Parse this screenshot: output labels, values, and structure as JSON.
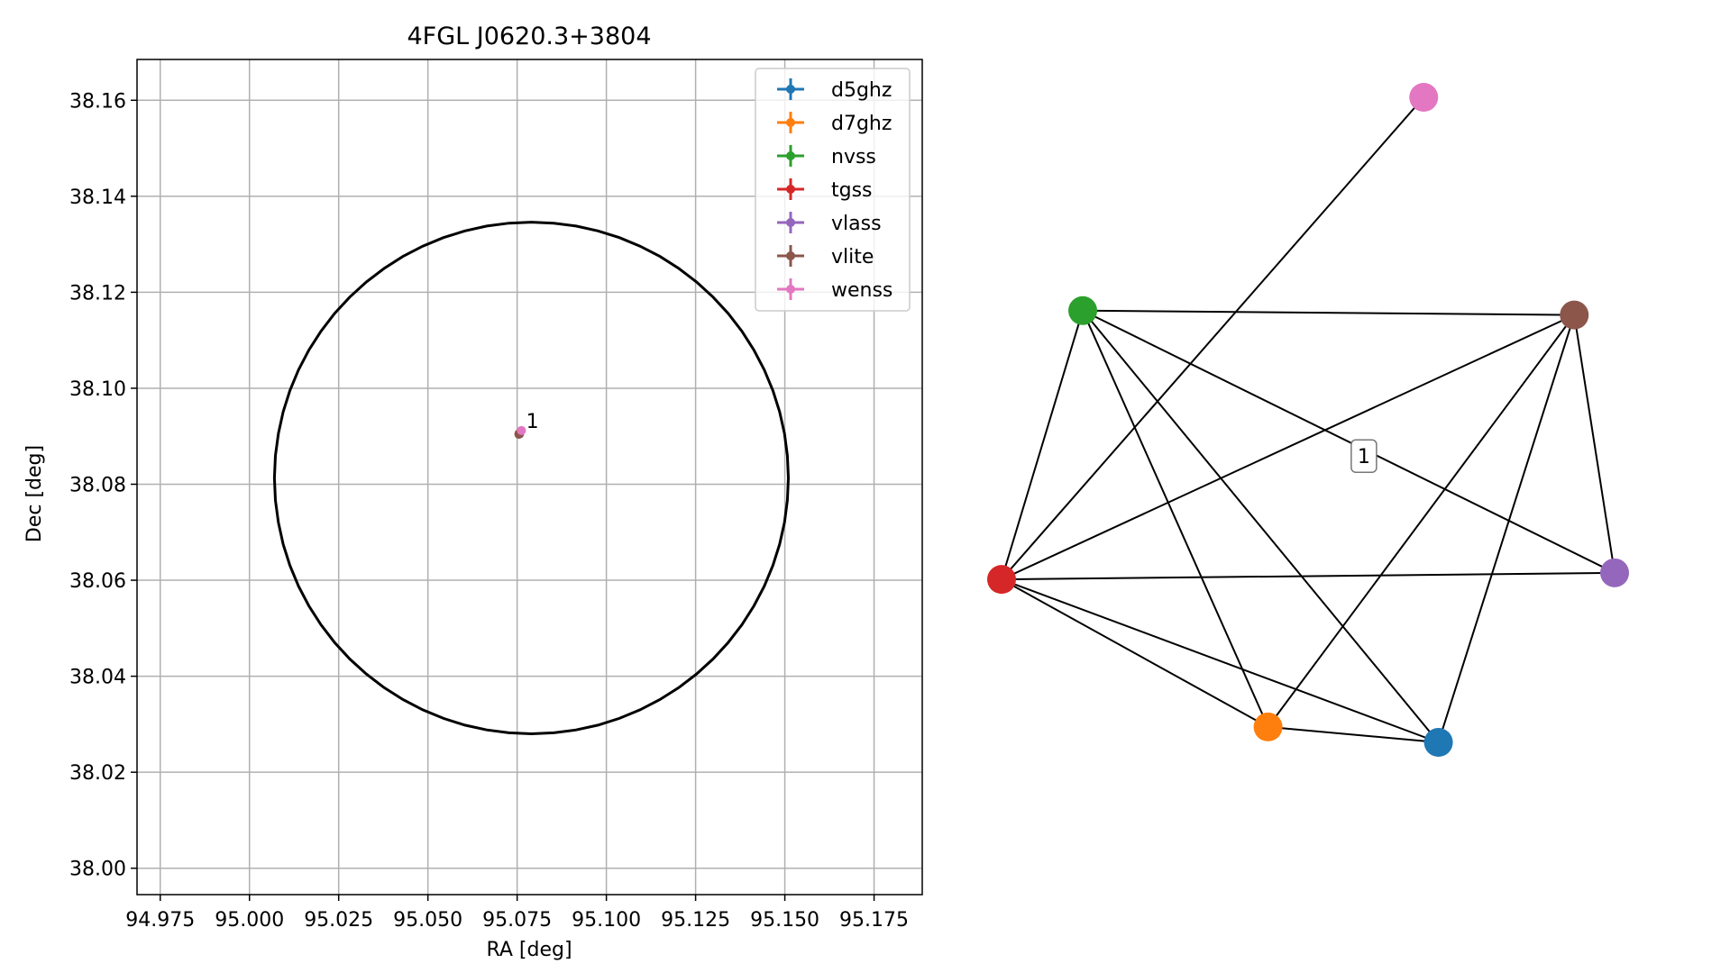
{
  "chart_data": [
    {
      "type": "scatter",
      "title": "4FGL J0620.3+3804",
      "xlabel": "RA [deg]",
      "ylabel": "Dec [deg]",
      "xlim": [
        94.9685,
        95.1885
      ],
      "ylim": [
        37.9945,
        38.1685
      ],
      "xticks": [
        94.975,
        95.0,
        95.025,
        95.05,
        95.075,
        95.1,
        95.125,
        95.15,
        95.175
      ],
      "xtick_labels": [
        "94.975",
        "95.000",
        "95.025",
        "95.050",
        "95.075",
        "95.100",
        "95.125",
        "95.150",
        "95.175"
      ],
      "yticks": [
        38.0,
        38.02,
        38.04,
        38.06,
        38.08,
        38.1,
        38.12,
        38.14,
        38.16
      ],
      "ytick_labels": [
        "38.00",
        "38.02",
        "38.04",
        "38.06",
        "38.08",
        "38.10",
        "38.12",
        "38.14",
        "38.16"
      ],
      "grid": true,
      "legend_position": "top-right",
      "circle": {
        "center_ra": 95.079,
        "center_dec": 38.0813,
        "radius_ra": 0.072,
        "radius_dec": 0.0533
      },
      "series": [
        {
          "name": "d5ghz",
          "color": "#1f77b4",
          "points": [
            {
              "x": 95.0757,
              "y": 38.0905
            }
          ]
        },
        {
          "name": "d7ghz",
          "color": "#ff7f0e",
          "points": [
            {
              "x": 95.0757,
              "y": 38.0906
            }
          ]
        },
        {
          "name": "nvss",
          "color": "#2ca02c",
          "points": [
            {
              "x": 95.0756,
              "y": 38.0906
            }
          ]
        },
        {
          "name": "tgss",
          "color": "#d62728",
          "points": [
            {
              "x": 95.0755,
              "y": 38.0905
            }
          ]
        },
        {
          "name": "vlass",
          "color": "#9467bd",
          "points": [
            {
              "x": 95.0757,
              "y": 38.0905
            }
          ]
        },
        {
          "name": "vlite",
          "color": "#8c564b",
          "points": [
            {
              "x": 95.0755,
              "y": 38.0904
            }
          ]
        },
        {
          "name": "wenss",
          "color": "#e377c2",
          "points": [
            {
              "x": 95.0762,
              "y": 38.0912
            }
          ]
        }
      ],
      "annotations": [
        {
          "text": "1",
          "x": 95.0765,
          "y": 38.0925
        }
      ]
    },
    {
      "type": "network",
      "nodes": [
        {
          "name": "d5ghz",
          "color": "#1f77b4",
          "x": 0.7126,
          "y": 0.0
        },
        {
          "name": "d7ghz",
          "color": "#ff7f0e",
          "x": 0.4347,
          "y": 0.0239
        },
        {
          "name": "nvss",
          "color": "#2ca02c",
          "x": 0.1324,
          "y": 0.6693
        },
        {
          "name": "tgss",
          "color": "#d62728",
          "x": 0.0,
          "y": 0.2526
        },
        {
          "name": "vlass",
          "color": "#9467bd",
          "x": 1.0,
          "y": 0.2628
        },
        {
          "name": "vlite",
          "color": "#8c564b",
          "x": 0.9342,
          "y": 0.6625
        },
        {
          "name": "wenss",
          "color": "#e377c2",
          "x": 0.6886,
          "y": 1.0
        }
      ],
      "edges": [
        [
          "nvss",
          "vlite"
        ],
        [
          "nvss",
          "tgss"
        ],
        [
          "nvss",
          "d7ghz"
        ],
        [
          "nvss",
          "d5ghz"
        ],
        [
          "nvss",
          "vlass"
        ],
        [
          "tgss",
          "wenss"
        ],
        [
          "tgss",
          "vlite"
        ],
        [
          "tgss",
          "vlass"
        ],
        [
          "tgss",
          "d7ghz"
        ],
        [
          "tgss",
          "d5ghz"
        ],
        [
          "d7ghz",
          "d5ghz"
        ],
        [
          "d7ghz",
          "vlite"
        ],
        [
          "d5ghz",
          "vlite"
        ],
        [
          "vlite",
          "vlass"
        ]
      ],
      "label": {
        "text": "1",
        "x": 0.591,
        "y": 0.4438
      }
    }
  ]
}
